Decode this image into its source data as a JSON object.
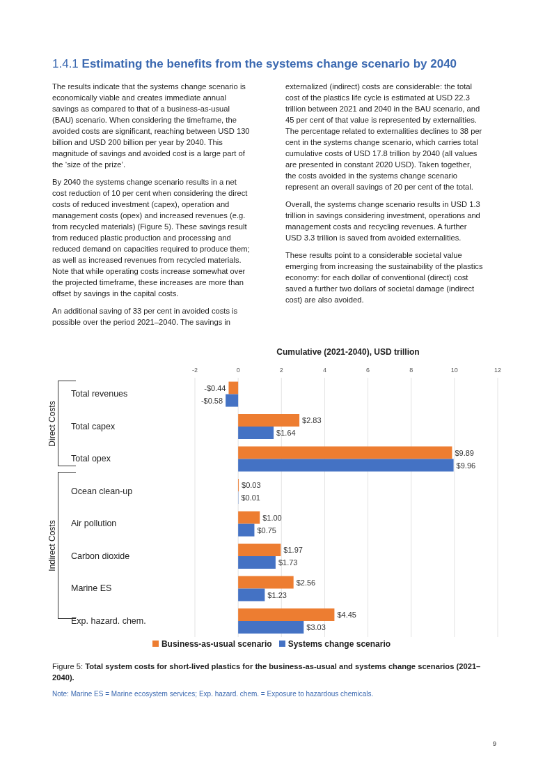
{
  "chart_data": {
    "type": "bar",
    "orientation": "horizontal",
    "title": "1.4.1 Estimating the benefits from the systems change scenario by 2040",
    "xlabel": "Cumulative (2021-2040), USD trillion",
    "categories": [
      "Total revenues",
      "Total capex",
      "Total opex",
      "Ocean clean-up",
      "Air pollution",
      "Carbon dioxide",
      "Marine ES",
      "Exp. hazard. chem."
    ],
    "series": [
      {
        "name": "Business-as-usual scenario",
        "color": "#ed7d31",
        "values": [
          -0.44,
          2.83,
          9.89,
          0.03,
          1.0,
          1.97,
          2.56,
          4.45
        ],
        "value_labels": [
          "-$0.44",
          "$2.83",
          "$9.89",
          "$0.03",
          "$1.00",
          "$1.97",
          "$2.56",
          "$4.45"
        ]
      },
      {
        "name": "Systems change scenario",
        "color": "#4472c4",
        "values": [
          -0.58,
          1.64,
          9.96,
          0.01,
          0.75,
          1.73,
          1.23,
          3.03
        ],
        "value_labels": [
          "-$0.58",
          "$1.64",
          "$9.96",
          "$0.01",
          "$0.75",
          "$1.73",
          "$1.23",
          "$3.03"
        ]
      }
    ],
    "xlim": [
      -2,
      12
    ],
    "xticks": [
      -2,
      0,
      2,
      4,
      6,
      8,
      10,
      12
    ],
    "grid": "x",
    "legend": "bottom",
    "annotations": [
      "The results indicate that the systems change scenario is economically viable and creates immediate annual savings as compared to that of a business-as-usual (BAU) scenario. When considering the timeframe, the avoided costs are significant, reaching between USD 130 billion and USD 200 billion per year by 2040. This magnitude of savings and avoided cost is a large part of the ‘size of the prize’.",
      "By 2040 the systems change scenario results in a net cost reduction of 10 per cent when considering the direct costs of reduced investment (capex), operation and management costs (opex) and increased revenues (e.g. from recycled materials) (Figure 5). These savings result from reduced plastic production and processing and reduced demand on capacities required to produce them; as well as increased revenues from recycled materials. Note that while operating costs increase somewhat over the projected timeframe, these increases are more than offset by savings in the capital costs.",
      "An additional saving of 33 per cent in avoided costs is possible over the period 2021–2040. The savings in externalized (indirect) costs are considerable: the total cost of the plastics life cycle is estimated at USD 22.3 trillion between 2021 and 2040 in the BAU scenario, and 45 per cent of that value is represented by externalities. The percentage related to externalities declines to 38 per cent in the systems change scenario, which carries total cumulative costs of USD 17.8 trillion by 2040 (all values are presented in constant 2020 USD). Taken together, the costs avoided in the systems change scenario represent an overall savings of 20 per cent of the total.",
      "Overall, the systems change scenario results in USD 1.3 trillion in savings considering investment, operations and management costs and recycling revenues. A further USD 3.3 trillion is saved from avoided externalities.",
      "These results point to a considerable societal value emerging from increasing the sustainability of the plastics economy: for each dollar of conventional (direct) cost saved a further two dollars of societal damage (indirect cost) are also avoided.",
      "Direct Costs",
      "Indirect Costs",
      "Figure 5: Total system costs for short-lived plastics for the business-as-usual and systems change scenarios (2021–2040).",
      "Note: Marine ES = Marine ecosystem services; Exp. hazard. chem. = Exposure to hazardous chemicals.",
      "9"
    ]
  }
}
